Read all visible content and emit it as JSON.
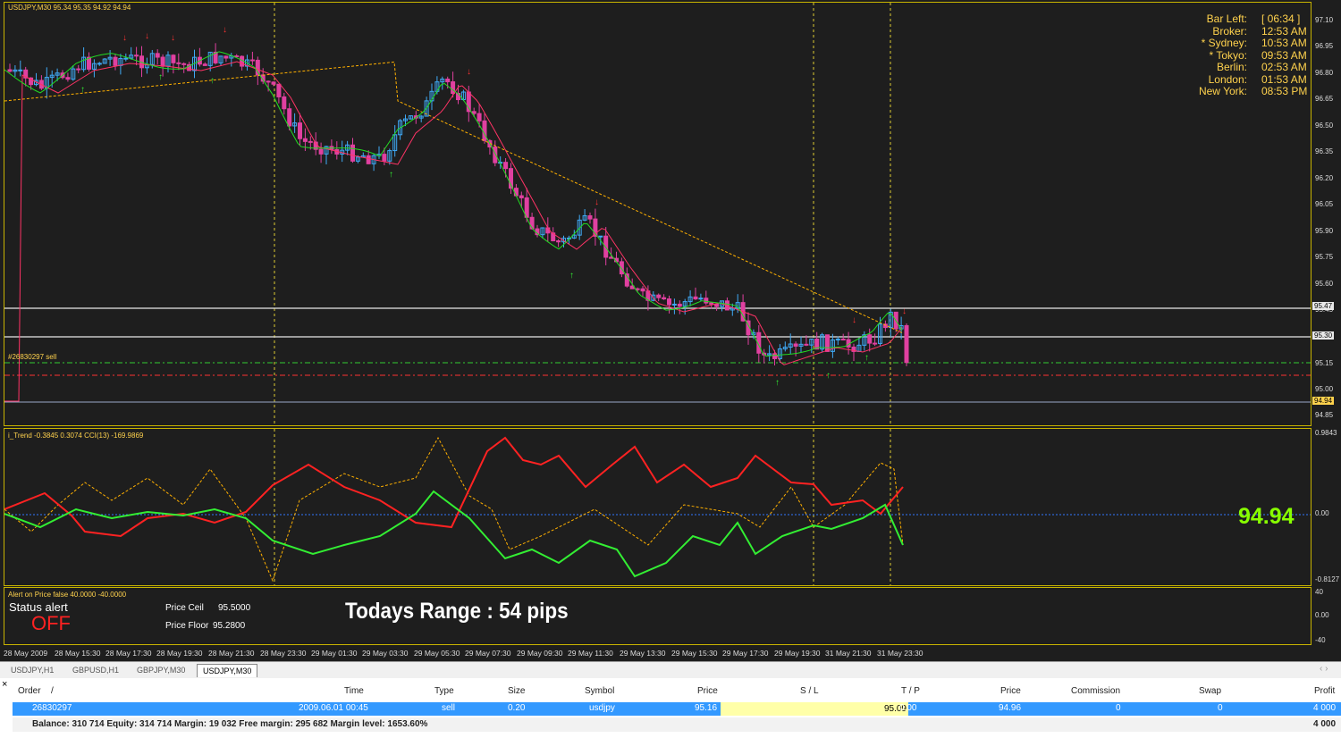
{
  "chart": {
    "title": "USDJPY,M30  95.34 95.35 94.92 94.94",
    "order_label": "#26830297 sell",
    "line_labels": [
      "95.47",
      "95.30",
      "94.94"
    ],
    "price_axis": [
      "97.10",
      "96.95",
      "96.80",
      "96.65",
      "96.50",
      "96.35",
      "96.20",
      "96.05",
      "95.90",
      "95.75",
      "95.60",
      "95.45",
      "95.15",
      "95.00",
      "94.85"
    ]
  },
  "clock": {
    "rows": [
      {
        "label": "Bar Left:",
        "value": "[ 06:34 ]"
      },
      {
        "label": "Broker:",
        "value": "12:53 AM"
      },
      {
        "label": "* Sydney:",
        "value": "10:53 AM"
      },
      {
        "label": "* Tokyo:",
        "value": "09:53 AM"
      },
      {
        "label": "Berlin:",
        "value": "02:53 AM"
      },
      {
        "label": "London:",
        "value": "01:53 AM"
      },
      {
        "label": "New York:",
        "value": "08:53 PM"
      }
    ]
  },
  "indicator": {
    "title": "i_Trend -0.3845 0.3074  CCI(13) -169.9869",
    "big_price": "94.94",
    "axis": [
      "0.9843",
      "0.00",
      "-0.8127"
    ]
  },
  "alert": {
    "title": "Alert on Price false  40.0000 -40.0000",
    "status_label": "Status alert",
    "status_value": "OFF",
    "ceil_label": "Price Ceil",
    "ceil_value": "95.5000",
    "floor_label": "Price Floor",
    "floor_value": "95.2800",
    "range_text": "Todays Range : 54 pips",
    "axis": [
      "40",
      "0.00",
      "-40"
    ]
  },
  "time_axis": [
    "28 May 2009",
    "28 May 15:30",
    "28 May 17:30",
    "28 May 19:30",
    "28 May 21:30",
    "28 May 23:30",
    "29 May 01:30",
    "29 May 03:30",
    "29 May 05:30",
    "29 May 07:30",
    "29 May 09:30",
    "29 May 11:30",
    "29 May 13:30",
    "29 May 15:30",
    "29 May 17:30",
    "29 May 19:30",
    "31 May 21:30",
    "31 May 23:30"
  ],
  "tabs": [
    "USDJPY,H1",
    "GBPUSD,H1",
    "GBPJPY,M30",
    "USDJPY,M30"
  ],
  "terminal": {
    "headers": [
      "Order",
      "/",
      "Time",
      "Type",
      "Size",
      "Symbol",
      "Price",
      "S / L",
      "T / P",
      "Price",
      "Commission",
      "Swap",
      "Profit"
    ],
    "order_row": [
      "26830297",
      "2009.06.01 00:45",
      "sell",
      "0.20",
      "usdjpy",
      "95.16",
      "95.09",
      "0.00",
      "94.96",
      "0",
      "0",
      "4 000"
    ],
    "balance_row": "Balance: 310 714  Equity: 314 714  Margin: 19 032  Free margin: 295 682  Margin level: 1653.60%",
    "balance_profit": "4 000"
  },
  "colors": {
    "bull_candle": "#3fa9f5",
    "bear_candle": "#e040a0",
    "fast_ma": "#22dd22",
    "slow_ma": "#ff3366",
    "long_ma": "#ffb000",
    "frame": "#c8b400",
    "sl_line": "#ff3333",
    "order_line": "#33cc33",
    "big_price": "#88ff00"
  }
}
